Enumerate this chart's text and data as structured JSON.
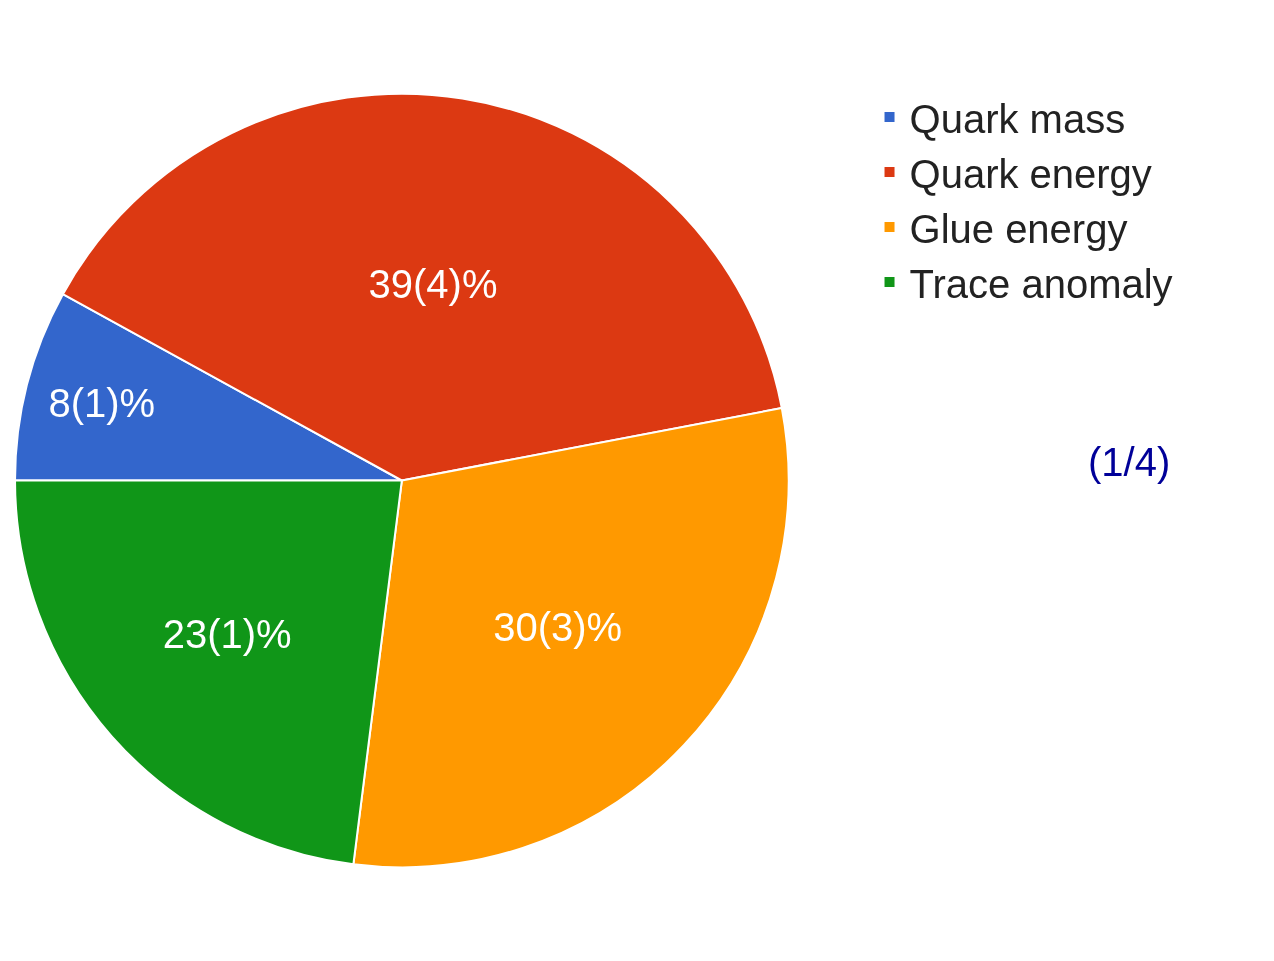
{
  "chart_data": {
    "type": "pie",
    "categories": [
      "Quark mass",
      "Quark energy",
      "Glue energy",
      "Trace anomaly"
    ],
    "values": [
      8,
      39,
      30,
      23
    ],
    "value_labels": [
      "8(1)%",
      "39(4)%",
      "30(3)%",
      "23(1)%"
    ],
    "colors": [
      "#3366cc",
      "#dc3912",
      "#ff9900",
      "#109618"
    ],
    "legend": "top right",
    "annotations": [
      "(1/4)"
    ]
  }
}
